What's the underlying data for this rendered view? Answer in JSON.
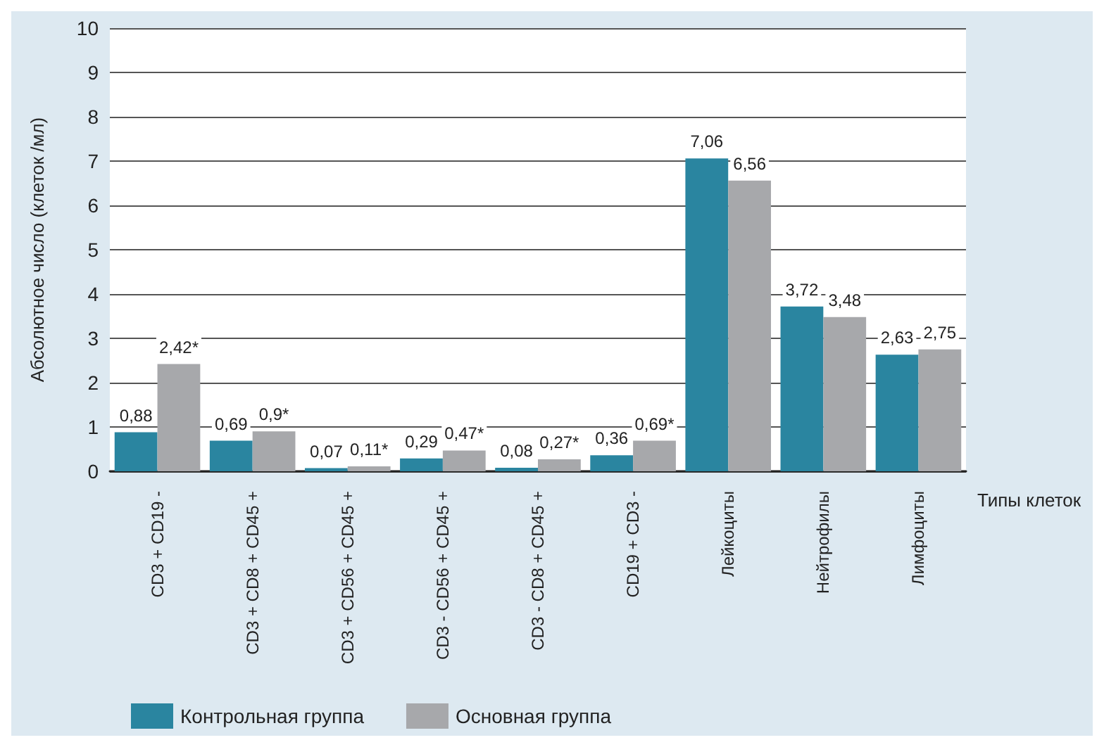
{
  "chart_data": {
    "type": "bar",
    "xlabel": "Типы клеток",
    "ylabel": "Абсолютное число (клеток /мл)",
    "categories": [
      "CD3 + CD19 -",
      "CD3 + CD8 + CD45 +",
      "CD3 + CD56 + CD45 +",
      "CD3 - CD56 + CD45 +",
      "CD3 - CD8 + CD45 +",
      "CD19 + CD3 -",
      "Лейкоциты",
      "Нейтрофилы",
      "Лимфоциты"
    ],
    "series": [
      {
        "name": "Контрольная группа",
        "color": "#2a85a0",
        "values": [
          0.88,
          0.69,
          0.07,
          0.29,
          0.08,
          0.36,
          7.06,
          3.72,
          2.63
        ],
        "value_labels": [
          "0,88",
          "0,69",
          "0,07",
          "0,29",
          "0,08",
          "0,36",
          "7,06",
          "3,72",
          "2,63"
        ]
      },
      {
        "name": "Основная группа",
        "color": "#a7a8ab",
        "values": [
          2.42,
          0.9,
          0.11,
          0.47,
          0.27,
          0.69,
          6.56,
          3.48,
          2.75
        ],
        "value_labels": [
          "2,42*",
          "0,9*",
          "0,11*",
          "0,47*",
          "0,27*",
          "0,69*",
          "6,56",
          "3,48",
          "2,75"
        ]
      }
    ],
    "ylim": [
      0,
      10
    ],
    "yticks": [
      0,
      1,
      2,
      3,
      4,
      5,
      6,
      7,
      8,
      9,
      10
    ],
    "grid": "y",
    "legend": "bottom left"
  }
}
